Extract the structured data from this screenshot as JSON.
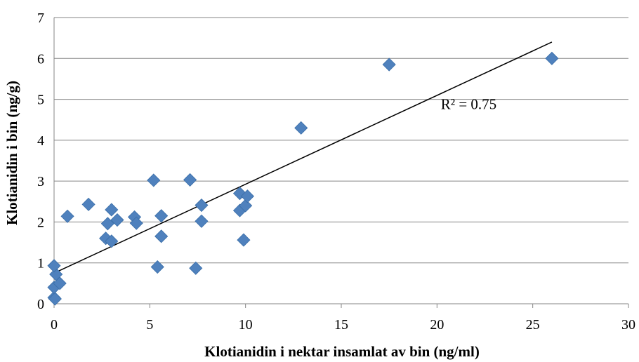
{
  "chart_data": {
    "type": "scatter",
    "title": "",
    "xlabel": "Klotianidin i nektar insamlat av bin (ng/ml)",
    "ylabel": "Klotianidin i bin (ng/g)",
    "xlim": [
      0,
      30
    ],
    "ylim": [
      0,
      7
    ],
    "xticks": [
      "0",
      "5",
      "10",
      "15",
      "20",
      "25",
      "30"
    ],
    "yticks": [
      "0",
      "1",
      "2",
      "3",
      "4",
      "5",
      "6",
      "7"
    ],
    "grid": "horizontal",
    "marker": "diamond",
    "colors": {
      "marker": "#4F81BD",
      "trendline": "#000000",
      "grid": "#868686"
    },
    "points": [
      {
        "x": 0.0,
        "y": 0.15
      },
      {
        "x": 0.05,
        "y": 0.12
      },
      {
        "x": 0.0,
        "y": 0.4
      },
      {
        "x": 0.1,
        "y": 0.72
      },
      {
        "x": 0.0,
        "y": 0.93
      },
      {
        "x": 0.3,
        "y": 0.5
      },
      {
        "x": 0.7,
        "y": 2.14
      },
      {
        "x": 1.8,
        "y": 2.43
      },
      {
        "x": 2.7,
        "y": 1.6
      },
      {
        "x": 2.8,
        "y": 1.96
      },
      {
        "x": 3.0,
        "y": 1.53
      },
      {
        "x": 3.0,
        "y": 2.3
      },
      {
        "x": 3.3,
        "y": 2.05
      },
      {
        "x": 4.2,
        "y": 2.12
      },
      {
        "x": 4.3,
        "y": 1.97
      },
      {
        "x": 5.2,
        "y": 3.02
      },
      {
        "x": 5.4,
        "y": 0.9
      },
      {
        "x": 5.6,
        "y": 1.65
      },
      {
        "x": 5.6,
        "y": 2.15
      },
      {
        "x": 7.1,
        "y": 3.03
      },
      {
        "x": 7.4,
        "y": 0.87
      },
      {
        "x": 7.7,
        "y": 2.02
      },
      {
        "x": 7.7,
        "y": 2.41
      },
      {
        "x": 9.7,
        "y": 2.7
      },
      {
        "x": 9.7,
        "y": 2.28
      },
      {
        "x": 9.9,
        "y": 1.56
      },
      {
        "x": 10.0,
        "y": 2.4
      },
      {
        "x": 10.1,
        "y": 2.63
      },
      {
        "x": 12.9,
        "y": 4.3
      },
      {
        "x": 17.5,
        "y": 5.85
      },
      {
        "x": 26.0,
        "y": 6.0
      }
    ],
    "trendline": {
      "x": [
        0,
        26
      ],
      "y": [
        0.75,
        6.4
      ]
    },
    "annotations": [
      {
        "text": "R² = 0.75",
        "x": 20.2,
        "y": 4.76
      }
    ]
  }
}
